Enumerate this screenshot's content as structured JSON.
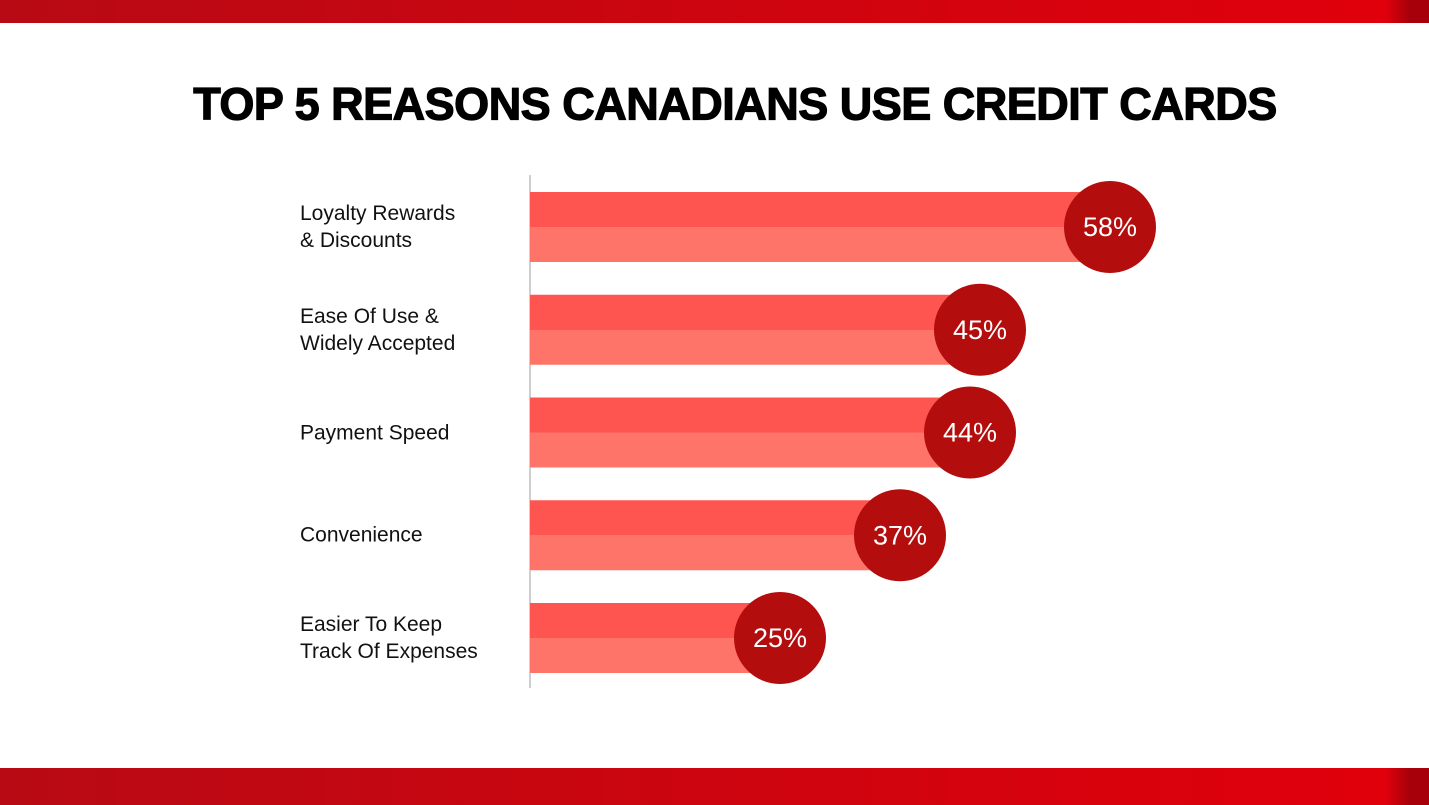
{
  "chart_data": {
    "type": "bar",
    "orientation": "horizontal",
    "title": "TOP 5 REASONS CANADIANS USE CREDIT CARDS",
    "categories": [
      "Loyalty Rewards\n& Discounts",
      "Ease Of Use &\nWidely Accepted",
      "Payment Speed",
      "Convenience",
      "Easier To Keep\nTrack Of Expenses"
    ],
    "values": [
      58,
      45,
      44,
      37,
      25
    ],
    "value_labels": [
      "58%",
      "45%",
      "44%",
      "37%",
      "25%"
    ],
    "color": "#ff5a52"
  }
}
